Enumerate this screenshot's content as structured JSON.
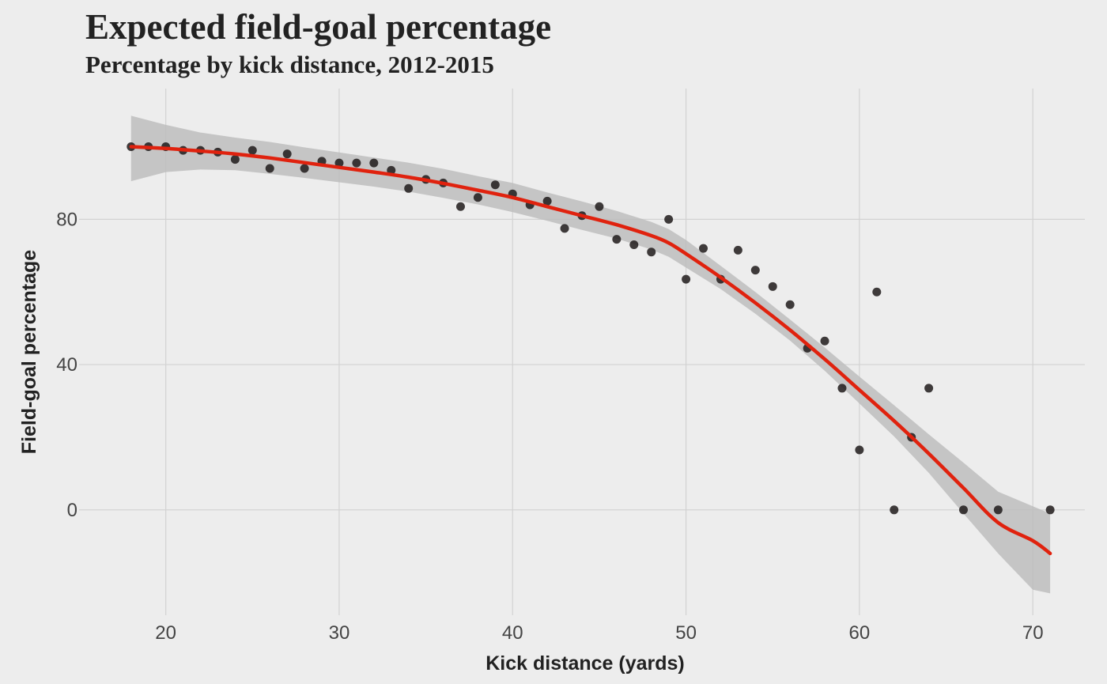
{
  "colors": {
    "background": "#ededed",
    "grid": "#d2d2d2",
    "points": "#1e1a1a",
    "smooth_line": "#e0220e",
    "confidence_band": "#bdbdbd",
    "text": "#222222",
    "tick_text": "#444444"
  },
  "chart_data": {
    "type": "scatter",
    "title": "Expected field-goal percentage",
    "subtitle": "Percentage by kick distance, 2012-2015",
    "xlabel": "Kick distance (yards)",
    "ylabel": "Field-goal percentage",
    "xlim": [
      15,
      73
    ],
    "ylim": [
      -29,
      116
    ],
    "xticks": [
      20,
      30,
      40,
      50,
      60,
      70
    ],
    "yticks": [
      0,
      40,
      80
    ],
    "grid": true,
    "legend": "none",
    "points": {
      "x": [
        18,
        19,
        20,
        21,
        22,
        23,
        24,
        25,
        26,
        27,
        28,
        29,
        30,
        31,
        32,
        33,
        34,
        35,
        36,
        37,
        38,
        39,
        40,
        41,
        42,
        43,
        44,
        45,
        46,
        47,
        48,
        49,
        50,
        51,
        52,
        53,
        54,
        55,
        56,
        57,
        58,
        59,
        60,
        61,
        62,
        63,
        64,
        66,
        68,
        71
      ],
      "y": [
        100,
        100,
        100,
        99,
        99,
        98.5,
        96.5,
        99,
        94,
        98,
        94,
        96,
        95.5,
        95.5,
        95.5,
        93.5,
        88.5,
        91,
        90,
        83.5,
        86,
        89.5,
        87,
        84,
        85,
        77.5,
        81,
        83.5,
        74.5,
        73,
        71,
        80,
        63.5,
        72,
        63.5,
        71.5,
        66,
        61.5,
        56.5,
        44.5,
        46.5,
        33.5,
        16.5,
        60,
        0,
        20,
        33.5,
        0,
        0,
        0
      ]
    },
    "smooth": {
      "x": [
        18,
        20,
        22,
        24,
        26,
        28,
        30,
        32,
        34,
        36,
        38,
        40,
        42,
        44,
        46,
        48,
        49,
        50,
        52,
        54,
        56,
        58,
        60,
        62,
        64,
        66,
        68,
        70,
        71
      ],
      "y": [
        100,
        99.5,
        98.8,
        98,
        96.9,
        95.6,
        94.3,
        93,
        91.6,
        89.9,
        88,
        86,
        83.5,
        81,
        78.5,
        75.5,
        73.5,
        70.5,
        64,
        57,
        49.5,
        41.5,
        33,
        24.5,
        15.5,
        6,
        -3.5,
        -8.5,
        -12
      ],
      "lower": [
        90.5,
        93,
        93.7,
        93.5,
        92.5,
        91.4,
        90.2,
        89,
        87.6,
        85.9,
        84.1,
        82,
        79.6,
        77.1,
        74.7,
        71.7,
        69.7,
        66.7,
        60.8,
        54,
        46.6,
        38.3,
        29.3,
        20.2,
        10.2,
        -1,
        -12,
        -22,
        -23
      ],
      "upper": [
        108.5,
        106,
        103.9,
        102.5,
        101.3,
        99.8,
        98.4,
        97,
        95.6,
        93.9,
        91.9,
        90,
        87.4,
        84.9,
        82.3,
        79.3,
        77.3,
        74.3,
        67.2,
        60,
        52.4,
        44.7,
        36.7,
        28.8,
        20.8,
        13,
        5,
        1,
        -1
      ]
    }
  }
}
